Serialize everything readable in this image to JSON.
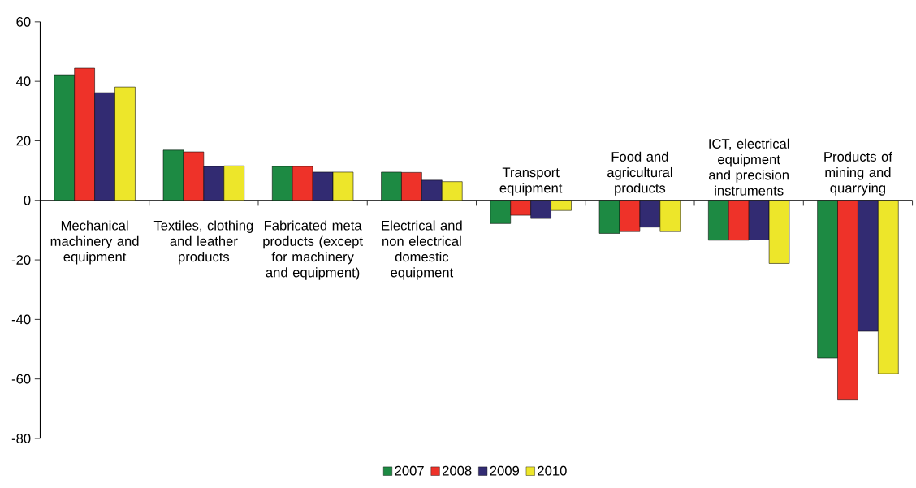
{
  "chart_data": {
    "type": "bar",
    "categories": [
      "Mechanical machinery and equipment",
      "Textiles, clothing and leather products",
      "Fabricated meta products (except for machinery and equipment)",
      "Electrical and non electrical domestic equipment",
      "Transport equipment",
      "Food and agricultural products",
      "ICT, electrical equipment and precision instruments",
      "Products of mining and quarrying"
    ],
    "series": [
      {
        "name": "2007",
        "color": "#1d8a43",
        "values": [
          42.2,
          16.9,
          11.4,
          9.5,
          -7.8,
          -11.1,
          -13.4,
          -53
        ]
      },
      {
        "name": "2008",
        "color": "#ee3229",
        "values": [
          44.4,
          16.3,
          11.4,
          9.4,
          -5.0,
          -10.5,
          -13.4,
          -67.1
        ]
      },
      {
        "name": "2009",
        "color": "#322b72",
        "values": [
          36.2,
          11.4,
          9.5,
          6.8,
          -6.1,
          -9.0,
          -13.3,
          -44
        ]
      },
      {
        "name": "2010",
        "color": "#ede62a",
        "values": [
          38.1,
          11.6,
          9.5,
          6.3,
          -3.4,
          -10.5,
          -21.2,
          -58.2
        ]
      }
    ],
    "ylim": [
      -80,
      60
    ],
    "yticks": [
      -80,
      -60,
      -40,
      -20,
      0,
      20,
      40,
      60
    ],
    "legend": "bottom",
    "grid": false
  }
}
